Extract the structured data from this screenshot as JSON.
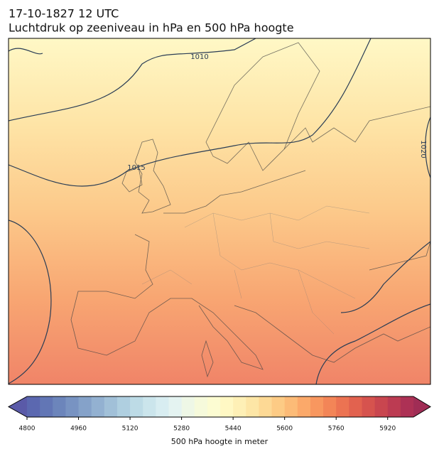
{
  "title": "17-10-1827 12 UTC",
  "subtitle": "Luchtdruk op zeeniveau in hPa en 500 hPa hoogte",
  "contour_labels": [
    "1010",
    "1015",
    "1020"
  ],
  "colorbar": {
    "label": "500 hPa hoogte in meter",
    "lim": [
      4800,
      6000
    ],
    "ticks": [
      4800,
      4960,
      5120,
      5280,
      5440,
      5600,
      5760,
      5920
    ],
    "colors": [
      "#5b68b0",
      "#6276b5",
      "#6c85bb",
      "#7893c2",
      "#85a2c9",
      "#93b1d1",
      "#a1c0d8",
      "#afcfe0",
      "#bddbe6",
      "#cbe5ec",
      "#d8edf1",
      "#e4f3f1",
      "#eef7e6",
      "#f6fadb",
      "#fcfcd2",
      "#fff8c4",
      "#fef0b6",
      "#fde6a6",
      "#fdd995",
      "#fdcb85",
      "#fcbb77",
      "#fba96a",
      "#f8975f",
      "#f38557",
      "#ec7352",
      "#e2624f",
      "#d6534e",
      "#c9464f",
      "#bc3b52",
      "#ad3155"
    ],
    "under_color": "#5a5aa8",
    "over_color": "#a02d55"
  }
}
